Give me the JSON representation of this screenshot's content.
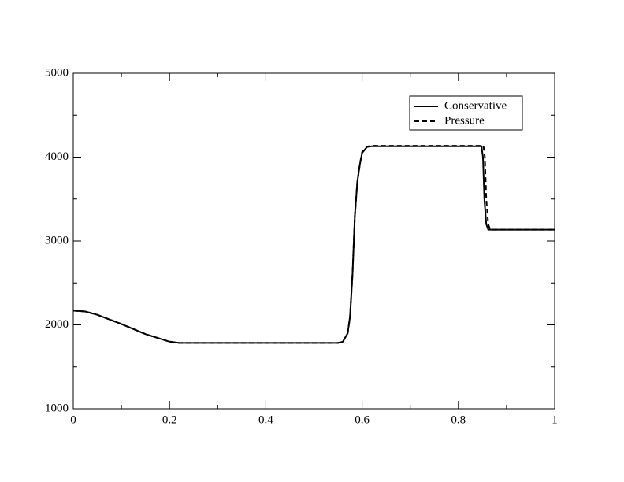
{
  "chart_data": {
    "type": "line",
    "xlim": [
      0,
      1
    ],
    "ylim": [
      1000,
      5000
    ],
    "xticks": [
      0,
      0.2,
      0.4,
      0.6,
      0.8,
      1
    ],
    "yticks": [
      1000,
      2000,
      3000,
      4000,
      5000
    ],
    "legend": "upper right",
    "series": [
      {
        "name": "Conservative",
        "color": "#000000",
        "dash": "solid",
        "x": [
          0,
          0.025,
          0.05,
          0.1,
          0.15,
          0.2,
          0.22,
          0.25,
          0.55,
          0.56,
          0.57,
          0.575,
          0.58,
          0.585,
          0.59,
          0.595,
          0.6,
          0.61,
          0.62,
          0.848,
          0.851,
          0.854,
          0.858,
          0.862,
          1
        ],
        "values": [
          2170,
          2160,
          2120,
          2010,
          1890,
          1800,
          1785,
          1785,
          1785,
          1800,
          1900,
          2100,
          2600,
          3300,
          3700,
          3900,
          4050,
          4120,
          4130,
          4130,
          4000,
          3500,
          3200,
          3135,
          3135
        ]
      },
      {
        "name": "Pressure",
        "color": "#000000",
        "dash": "dashed",
        "x": [
          0,
          0.025,
          0.05,
          0.1,
          0.15,
          0.2,
          0.22,
          0.25,
          0.55,
          0.56,
          0.57,
          0.575,
          0.58,
          0.585,
          0.59,
          0.595,
          0.6,
          0.61,
          0.62,
          0.852,
          0.855,
          0.858,
          0.862,
          0.866,
          1
        ],
        "values": [
          2170,
          2160,
          2120,
          2010,
          1890,
          1800,
          1785,
          1785,
          1785,
          1800,
          1900,
          2100,
          2600,
          3300,
          3700,
          3900,
          4060,
          4125,
          4135,
          4135,
          4000,
          3500,
          3200,
          3135,
          3135
        ]
      }
    ]
  }
}
